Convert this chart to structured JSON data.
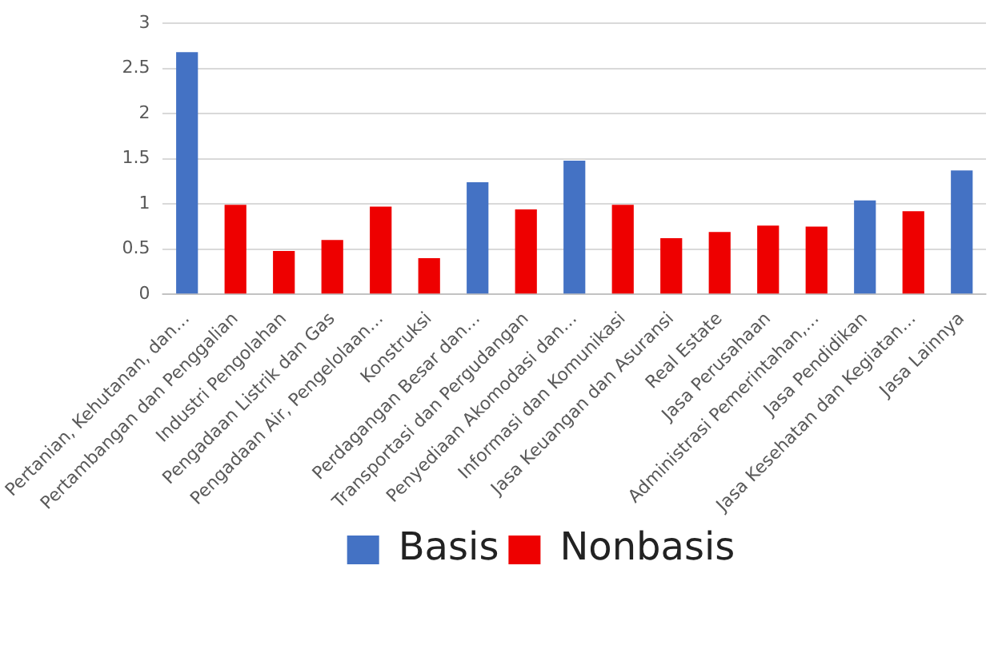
{
  "chart_data": {
    "type": "bar",
    "categories": [
      "Pertanian, Kehutanan, dan…",
      "Pertambangan dan Penggalian",
      "Industri Pengolahan",
      "Pengadaan Listrik dan Gas",
      "Pengadaan Air, Pengelolaan…",
      "Konstruksi",
      "Perdagangan Besar dan…",
      "Transportasi dan Pergudangan",
      "Penyediaan Akomodasi dan…",
      "Informasi dan Komunikasi",
      "Jasa Keuangan dan Asuransi",
      "Real Estate",
      "Jasa Perusahaan",
      "Administrasi Pemerintahan,…",
      "Jasa Pendidikan",
      "Jasa Kesehatan dan Kegiatan…",
      "Jasa Lainnya"
    ],
    "series": [
      {
        "name": "Basis",
        "color": "#4472c4",
        "values": [
          2.68,
          null,
          null,
          null,
          null,
          null,
          1.24,
          null,
          1.48,
          null,
          null,
          null,
          null,
          null,
          1.04,
          null,
          1.37
        ]
      },
      {
        "name": "Nonbasis",
        "color": "#ee0000",
        "values": [
          null,
          0.99,
          0.48,
          0.6,
          0.97,
          0.4,
          null,
          0.94,
          null,
          0.99,
          0.62,
          0.69,
          0.76,
          0.75,
          null,
          0.92,
          null
        ]
      }
    ],
    "ylim": [
      0,
      3
    ],
    "yticks": [
      0,
      0.5,
      1,
      1.5,
      2,
      2.5,
      3
    ],
    "grid": "y",
    "legend": "bottom"
  }
}
